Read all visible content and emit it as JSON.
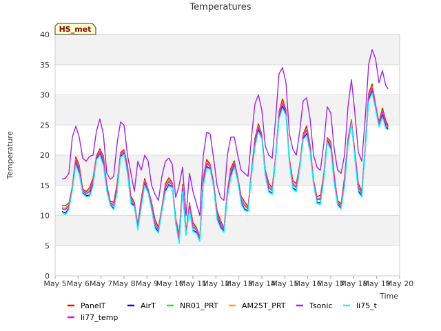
{
  "chart_data": {
    "type": "line",
    "title": "Temperatures",
    "xlabel": "Time",
    "ylabel": "Temperature",
    "badge": "HS_met",
    "ylim": [
      0,
      40
    ],
    "yticks": [
      0,
      5,
      10,
      15,
      20,
      25,
      30,
      35,
      40
    ],
    "xlim": [
      5,
      20
    ],
    "xticks": [
      {
        "value": 5,
        "label": "May 5"
      },
      {
        "value": 6,
        "label": "May 6"
      },
      {
        "value": 7,
        "label": "May 7"
      },
      {
        "value": 8,
        "label": "May 8"
      },
      {
        "value": 9,
        "label": "May 9"
      },
      {
        "value": 10,
        "label": "May 10"
      },
      {
        "value": 11,
        "label": "May 11"
      },
      {
        "value": 12,
        "label": "May 12"
      },
      {
        "value": 13,
        "label": "May 13"
      },
      {
        "value": 14,
        "label": "May 14"
      },
      {
        "value": 15,
        "label": "May 15"
      },
      {
        "value": 16,
        "label": "May 16"
      },
      {
        "value": 17,
        "label": "May 17"
      },
      {
        "value": 18,
        "label": "May 18"
      },
      {
        "value": 19,
        "label": "May 19"
      },
      {
        "value": 20,
        "label": "May 20"
      }
    ],
    "grid": true,
    "legend_position": "bottom",
    "base_profile": {
      "x": [
        5.3,
        5.45,
        5.6,
        5.75,
        5.9,
        6.05,
        6.2,
        6.35,
        6.5,
        6.65,
        6.8,
        6.95,
        7.1,
        7.25,
        7.4,
        7.55,
        7.7,
        7.85,
        8.0,
        8.15,
        8.3,
        8.45,
        8.6,
        8.75,
        8.9,
        9.05,
        9.2,
        9.35,
        9.5,
        9.65,
        9.8,
        9.95,
        10.1,
        10.25,
        10.4,
        10.55,
        10.7,
        10.85,
        11.0,
        11.15,
        11.3,
        11.45,
        11.6,
        11.75,
        11.9,
        12.05,
        12.2,
        12.35,
        12.5,
        12.65,
        12.8,
        12.95,
        13.1,
        13.25,
        13.4,
        13.55,
        13.7,
        13.85,
        14.0,
        14.15,
        14.3,
        14.45,
        14.6,
        14.75,
        14.9,
        15.05,
        15.2,
        15.35,
        15.5,
        15.65,
        15.8,
        15.95,
        16.1,
        16.25,
        16.4,
        16.55,
        16.7,
        16.85,
        17.0,
        17.15,
        17.3,
        17.45,
        17.6,
        17.75,
        17.9,
        18.05,
        18.2,
        18.35,
        18.5,
        18.65,
        18.8,
        18.95,
        19.1,
        19.25,
        19.4,
        19.5
      ],
      "y": [
        11.0,
        10.8,
        11.5,
        14.5,
        19.0,
        17.5,
        14.0,
        13.5,
        13.8,
        15.5,
        19.5,
        20.5,
        19.0,
        14.5,
        12.0,
        11.5,
        14.5,
        20.0,
        20.5,
        17.5,
        12.5,
        11.8,
        8.0,
        12.0,
        15.5,
        14.0,
        11.5,
        8.5,
        7.5,
        11.0,
        14.5,
        15.5,
        15.0,
        9.0,
        6.0,
        14.5,
        7.0,
        11.5,
        8.0,
        7.5,
        6.0,
        15.5,
        18.5,
        18.0,
        15.0,
        10.0,
        8.5,
        7.5,
        13.5,
        17.0,
        18.5,
        16.0,
        12.5,
        11.5,
        11.0,
        17.0,
        22.0,
        24.5,
        23.0,
        17.0,
        14.5,
        14.0,
        19.5,
        26.5,
        28.5,
        27.0,
        19.0,
        15.0,
        14.5,
        18.0,
        23.0,
        24.0,
        21.0,
        15.5,
        12.5,
        12.5,
        16.5,
        22.5,
        21.5,
        16.0,
        12.0,
        11.5,
        15.5,
        22.0,
        25.5,
        20.0,
        14.5,
        13.5,
        21.0,
        29.5,
        31.0,
        28.0,
        25.0,
        27.0,
        25.0,
        24.5
      ]
    },
    "series": [
      {
        "name": "PanelT",
        "color": "#ff0000",
        "offset": 0.6
      },
      {
        "name": "AirT",
        "color": "#0000ff",
        "offset": -0.3
      },
      {
        "name": "NR01_PRT",
        "color": "#00ff00",
        "offset": 0.3
      },
      {
        "name": "AM25T_PRT",
        "color": "#ffa500",
        "offset": 0.2
      },
      {
        "name": "Tsonic",
        "color": "#a020f0",
        "offset": 0,
        "values": [
          16.0,
          16.2,
          17.0,
          23.0,
          24.8,
          23.0,
          19.5,
          19.0,
          19.8,
          20.0,
          24.0,
          26.0,
          23.5,
          17.0,
          16.0,
          16.5,
          22.0,
          25.5,
          25.0,
          20.0,
          17.0,
          14.0,
          19.0,
          17.5,
          20.0,
          19.0,
          15.0,
          13.5,
          12.5,
          16.5,
          19.0,
          19.5,
          18.5,
          13.0,
          15.0,
          18.0,
          10.0,
          17.0,
          14.0,
          12.0,
          10.0,
          20.0,
          23.8,
          23.5,
          19.5,
          15.0,
          13.0,
          12.5,
          20.0,
          23.0,
          23.0,
          20.0,
          17.5,
          17.0,
          16.5,
          23.0,
          28.5,
          30.0,
          27.5,
          21.5,
          20.0,
          19.5,
          26.0,
          33.5,
          34.5,
          32.0,
          23.5,
          21.0,
          20.0,
          24.0,
          29.0,
          29.5,
          26.0,
          20.0,
          18.0,
          17.5,
          22.0,
          28.0,
          27.0,
          21.0,
          17.5,
          17.0,
          20.0,
          28.0,
          32.5,
          27.0,
          20.5,
          19.0,
          26.0,
          35.0,
          37.5,
          36.0,
          32.0,
          34.0,
          31.5,
          31.0
        ]
      },
      {
        "name": "li75_t",
        "color": "#00ffff",
        "offset": -0.5
      },
      {
        "name": "li77_temp",
        "color": "#ff00ff",
        "offset": 0.1
      }
    ]
  }
}
